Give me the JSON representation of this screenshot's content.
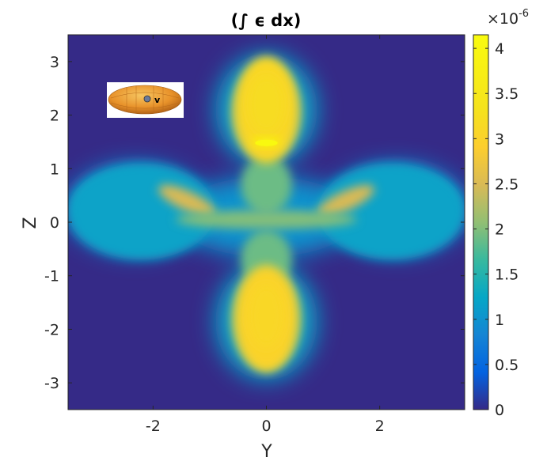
{
  "chart_data": {
    "type": "heatmap",
    "title": "(∫ ϵ dx)",
    "xlabel": "Y",
    "ylabel": "Z",
    "xlim": [
      -3.5,
      3.5
    ],
    "ylim": [
      -3.5,
      3.5
    ],
    "x_ticks": [
      -2,
      0,
      2
    ],
    "x_tick_labels": [
      "-2",
      "0",
      "2"
    ],
    "y_ticks": [
      -3,
      -2,
      -1,
      0,
      1,
      2,
      3
    ],
    "y_tick_labels": [
      "-3",
      "-2",
      "-1",
      "0",
      "1",
      "2",
      "3"
    ],
    "colormap": "parula",
    "background_color": "#352a87",
    "colorbar": {
      "clim": [
        0,
        4.15
      ],
      "ticks": [
        0,
        0.5,
        1,
        1.5,
        2,
        2.5,
        3,
        3.5,
        4
      ],
      "tick_labels": [
        "0",
        "0.5",
        "1",
        "1.5",
        "2",
        "2.5",
        "3",
        "3.5",
        "4"
      ],
      "multiplier_base": "×10",
      "multiplier_exponent": "-6"
    },
    "inset": {
      "description_icon": "torus-inset-icon",
      "marker_label": "v"
    },
    "regions": [
      {
        "shape": "cross-arm",
        "cx": 0,
        "cy": 2.1,
        "rx": 0.55,
        "ry": 1.0,
        "value": 3.1
      },
      {
        "shape": "cross-arm",
        "cx": 0,
        "cy": -1.8,
        "rx": 0.55,
        "ry": 1.0,
        "value": 3.0
      },
      {
        "shape": "hot-spot",
        "cx": 0,
        "cy": 1.5,
        "rx": 0.25,
        "ry": 0.08,
        "value": 4.1
      },
      {
        "shape": "wing",
        "cx": -2.2,
        "cy": 0.2,
        "rx": 1.3,
        "ry": 0.9,
        "value": 1.2
      },
      {
        "shape": "wing",
        "cx": 2.2,
        "cy": 0.2,
        "rx": 1.3,
        "ry": 0.9,
        "value": 1.2
      },
      {
        "shape": "ridge",
        "cx": -1.4,
        "cy": 0.4,
        "rx": 0.55,
        "ry": 0.18,
        "value": 2.5
      },
      {
        "shape": "ridge",
        "cx": 1.4,
        "cy": 0.4,
        "rx": 0.55,
        "ry": 0.18,
        "value": 2.5
      },
      {
        "shape": "band",
        "cx": 0,
        "cy": 0.05,
        "rx": 1.6,
        "ry": 0.18,
        "value": 2.0
      }
    ]
  }
}
